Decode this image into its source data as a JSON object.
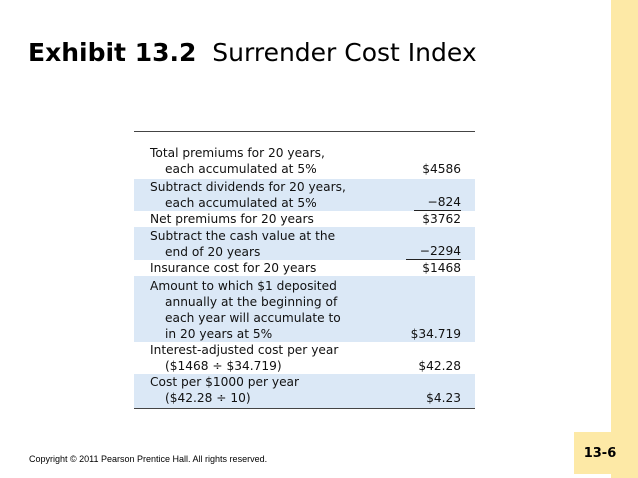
{
  "title": {
    "exhibit": "Exhibit 13.2",
    "name": "Surrender Cost Index"
  },
  "table": {
    "rows": [
      {
        "line1": "Total premiums for 20 years,",
        "line2": "each accumulated at 5%",
        "value": "$4586"
      },
      {
        "line1": "Subtract dividends for 20 years,",
        "line2": "each accumulated at 5%",
        "value": "−824"
      },
      {
        "line1": "Net premiums for 20 years",
        "value": "$3762"
      },
      {
        "line1": "Subtract the cash value at the",
        "line2": "end of 20 years",
        "value": "−2294"
      },
      {
        "line1": "Insurance cost for 20 years",
        "value": "$1468"
      },
      {
        "line1": "Amount to which $1 deposited",
        "line2": "annually at the beginning of",
        "line3": "each year will accumulate to",
        "line4": "in 20 years at 5%",
        "value": "$34.719"
      },
      {
        "line1": "Interest-adjusted cost per year",
        "line2": "($1468 ÷ $34.719)",
        "value": "$42.28"
      },
      {
        "line1": "Cost per $1000 per year",
        "line2": "($42.28 ÷ 10)",
        "value": "$4.23"
      }
    ]
  },
  "footer": {
    "copyright": "Copyright © 2011 Pearson Prentice Hall. All rights reserved.",
    "page_number": "13-6"
  },
  "colors": {
    "accent_bar": "#fde9a6",
    "row_shade": "#dbe8f6"
  }
}
